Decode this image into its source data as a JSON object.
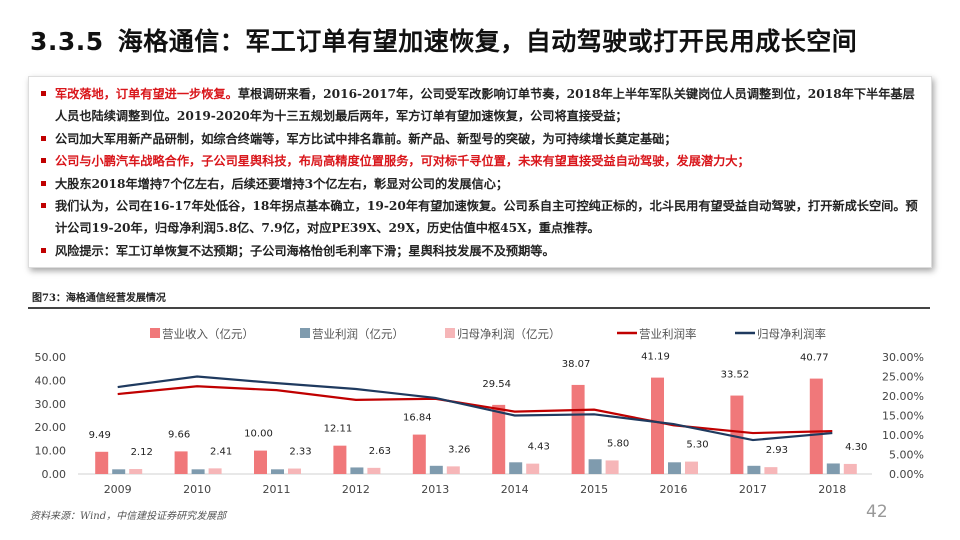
{
  "header": {
    "section": "3.3.5",
    "title": "海格通信：军工订单有望加速恢复，自动驾驶或打开民用成长空间"
  },
  "bullets": [
    {
      "highlight": "军改落地，订单有望进一步恢复。",
      "text": "草根调研来看，2016-2017年，公司受军改影响订单节奏，2018年上半年军队关键岗位人员调整到位，2018年下半年基层人员也陆续调整到位。2019-2020年为十三五规划最后两年，军方订单有望加速恢复，公司将直接受益；"
    },
    {
      "highlight": "",
      "text": "公司加大军用新产品研制，如综合终端等，军方比试中排名靠前。新产品、新型号的突破，为可持续增长奠定基础；"
    },
    {
      "highlight": "公司与小鹏汽车战略合作，子公司星舆科技，布局高精度位置服务，可对标千寻位置，未来有望直接受益自动驾驶，发展潜力大；",
      "text": ""
    },
    {
      "highlight": "",
      "text": "大股东2018年增持7个亿左右，后续还要增持3个亿左右，彰显对公司的发展信心；"
    },
    {
      "highlight": "",
      "text": "我们认为，公司在16-17年处低谷，18年拐点基本确立，19-20年有望加速恢复。公司系自主可控纯正标的，北斗民用有望受益自动驾驶，打开新成长空间。预计公司19-20年，归母净利润5.8亿、7.9亿，对应PE39X、29X，历史估值中枢45X，重点推荐。"
    },
    {
      "highlight": "",
      "text": "风险提示：军工订单恢复不达预期；子公司海格怡创毛利率下滑；星舆科技发展不及预期等。"
    }
  ],
  "figure_caption": "图73：海格通信经营发展情况",
  "source": "资料来源：Wind，中信建投证券研究发展部",
  "page_number": "42",
  "chart_data": {
    "type": "bar",
    "categories": [
      "2009",
      "2010",
      "2011",
      "2012",
      "2013",
      "2014",
      "2015",
      "2016",
      "2017",
      "2018"
    ],
    "series": [
      {
        "name": "营业收入（亿元）",
        "kind": "bar",
        "axis": "left",
        "color": "#f0787a",
        "values": [
          9.49,
          9.66,
          10.0,
          12.11,
          16.84,
          29.54,
          38.07,
          41.19,
          33.52,
          40.77
        ],
        "labels": [
          "9.49",
          "9.66",
          "10.00",
          "12.11",
          "16.84",
          "29.54",
          "38.07",
          "41.19",
          "33.52",
          "40.77"
        ]
      },
      {
        "name": "营业利润（亿元）",
        "kind": "bar",
        "axis": "left",
        "color": "#7f9bae",
        "values": [
          2.0,
          2.0,
          2.0,
          2.8,
          3.5,
          5.0,
          6.3,
          5.0,
          3.5,
          4.5
        ]
      },
      {
        "name": "归母净利润（亿元）",
        "kind": "bar",
        "axis": "left",
        "color": "#f6b6b8",
        "values": [
          2.12,
          2.41,
          2.33,
          2.63,
          3.26,
          4.43,
          5.8,
          5.3,
          2.93,
          4.3
        ],
        "labels": [
          "2.12",
          "2.41",
          "2.33",
          "2.63",
          "3.26",
          "4.43",
          "5.80",
          "5.30",
          "2.93",
          "4.30"
        ]
      },
      {
        "name": "营业利润率",
        "kind": "line",
        "axis": "right",
        "color": "#c00000",
        "values": [
          20.5,
          22.5,
          21.5,
          19.0,
          19.3,
          16.0,
          16.5,
          12.5,
          10.5,
          11.0
        ]
      },
      {
        "name": "归母净利润率",
        "kind": "line",
        "axis": "right",
        "color": "#1f3a5f",
        "values": [
          22.3,
          25.0,
          23.3,
          21.8,
          19.5,
          15.0,
          15.3,
          12.8,
          8.7,
          10.5
        ]
      }
    ],
    "left_ticks": [
      "0.00",
      "10.00",
      "20.00",
      "30.00",
      "40.00",
      "50.00"
    ],
    "right_ticks": [
      "0.00%",
      "5.00%",
      "10.00%",
      "15.00%",
      "20.00%",
      "25.00%",
      "30.00%"
    ],
    "ylim": [
      0,
      50
    ],
    "y2lim": [
      0,
      30
    ],
    "legend": "top"
  }
}
